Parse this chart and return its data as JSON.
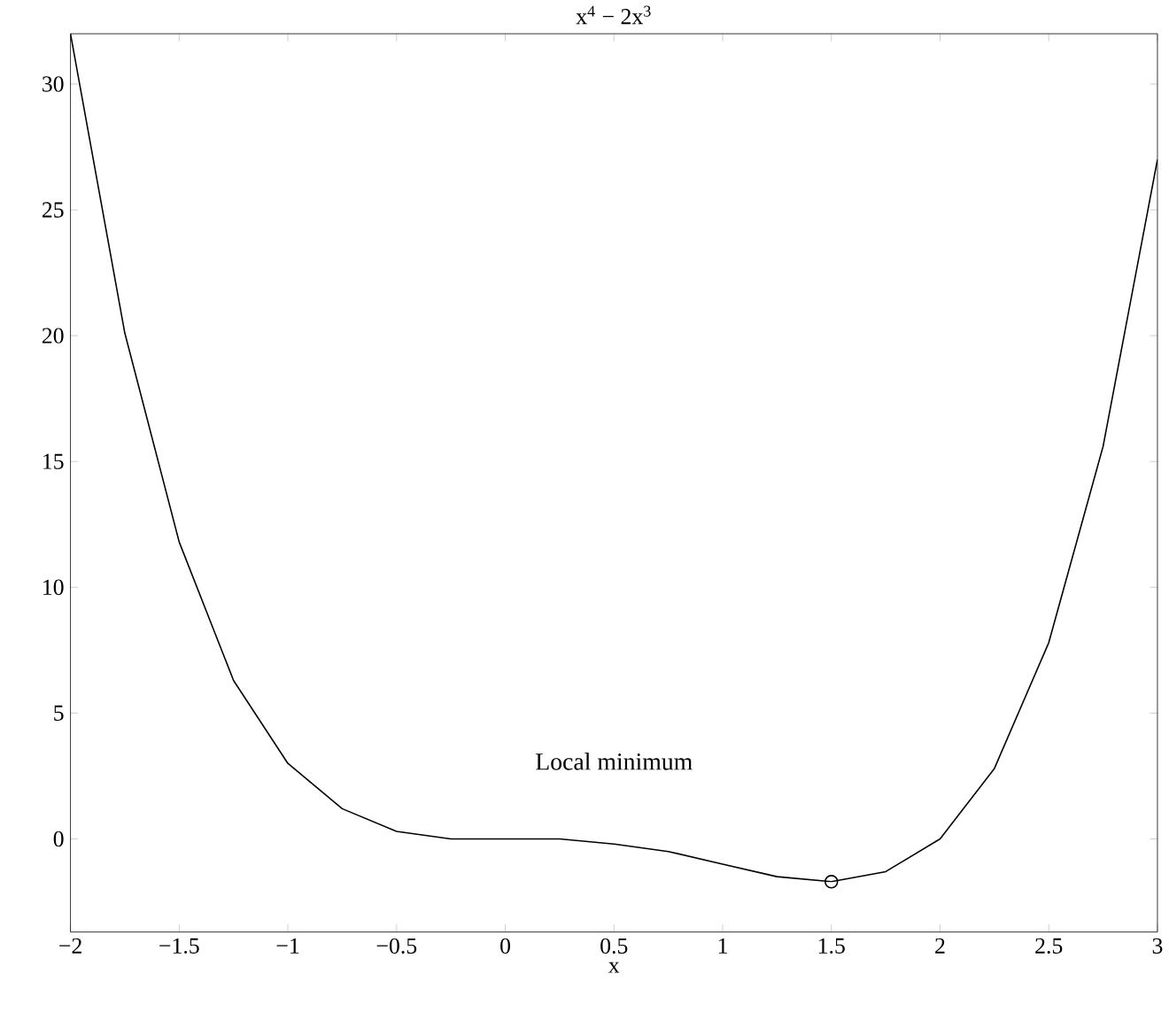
{
  "chart_data": {
    "type": "line",
    "title": "x$^{4}$ − 2x$^{3}$",
    "xlabel": "x",
    "xlim": [
      -2,
      3
    ],
    "ylim": [
      -3.7,
      32
    ],
    "xticks": [
      {
        "value": -2,
        "label": "−2"
      },
      {
        "value": -1.5,
        "label": "−1.5"
      },
      {
        "value": -1,
        "label": "−1"
      },
      {
        "value": -0.5,
        "label": "−0.5"
      },
      0,
      0.5,
      1,
      1.5,
      2,
      2.5,
      3
    ],
    "yticks": [
      0,
      5,
      10,
      15,
      20,
      25,
      30
    ],
    "grid": false,
    "marker": "none",
    "line_style": "solid",
    "annotations": [
      "Local minimum"
    ],
    "series": [
      {
        "color": "#000000",
        "x": [
          -2,
          -1.75,
          -1.5,
          -1.25,
          -1,
          -0.75,
          -0.5,
          -0.25,
          0,
          0.25,
          0.5,
          0.75,
          1,
          1.25,
          1.5,
          1.75,
          2,
          2.25,
          2.5,
          2.75,
          3
        ],
        "values": [
          32,
          20.1,
          11.8,
          6.3,
          3,
          1.2,
          0.3,
          0,
          0,
          0,
          -0.2,
          -0.5,
          -1,
          -1.5,
          -1.7,
          -1.3,
          0,
          2.8,
          7.8,
          15.6,
          27
        ]
      },
      {
        "type": "scatter",
        "marker": "circle",
        "color": "#000000",
        "x": [
          1.5
        ],
        "values": [
          -1.7
        ]
      }
    ]
  }
}
